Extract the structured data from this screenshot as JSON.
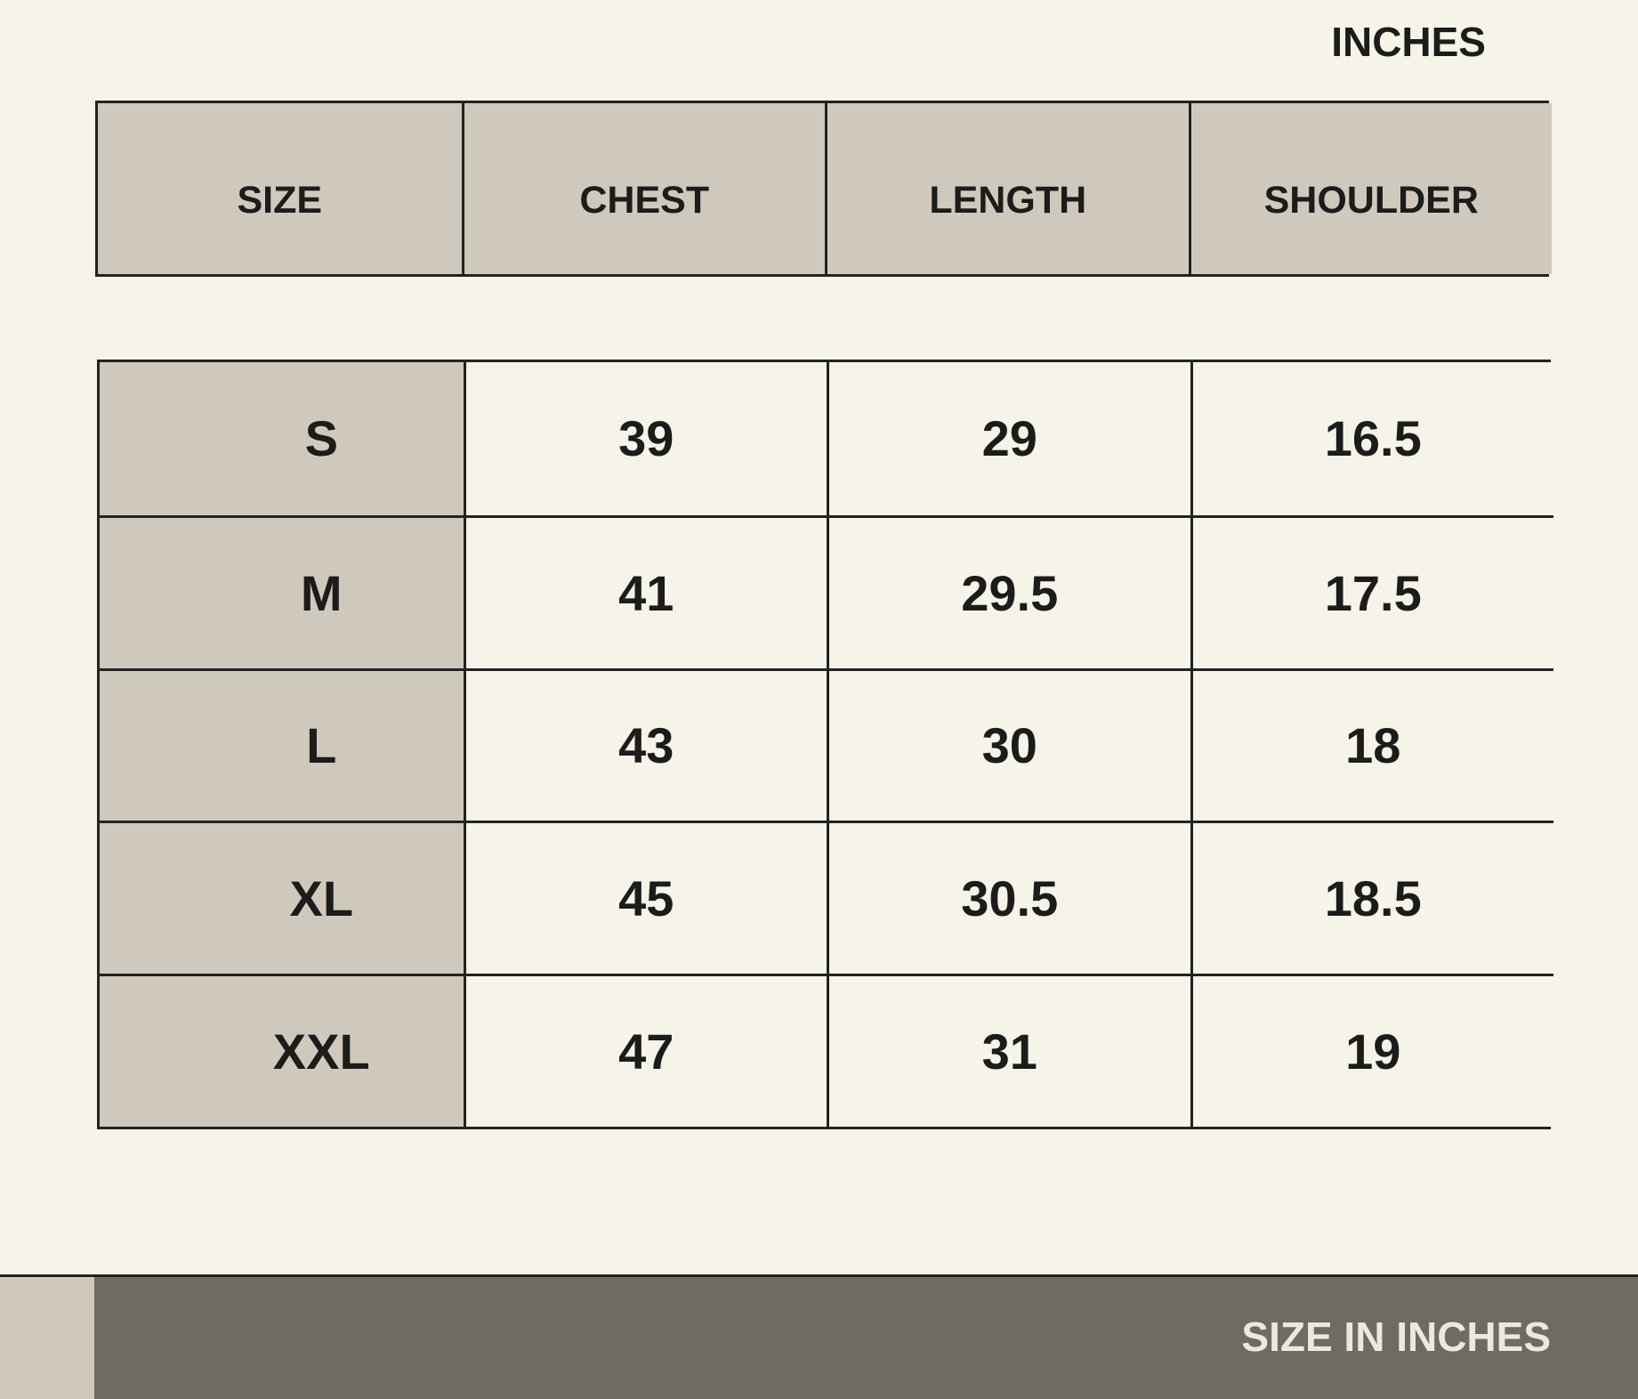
{
  "unit_label": "INCHES",
  "table": {
    "header": [
      "SIZE",
      "CHEST",
      "LENGTH",
      "SHOULDER"
    ],
    "rows": [
      [
        "S",
        39,
        29,
        16.5
      ],
      [
        "M",
        41,
        29.5,
        17.5
      ],
      [
        "L",
        43,
        30,
        18
      ],
      [
        "XL",
        45,
        30.5,
        18.5
      ],
      [
        "XXL",
        47,
        31,
        19
      ]
    ]
  },
  "footer": "SIZE IN INCHES"
}
